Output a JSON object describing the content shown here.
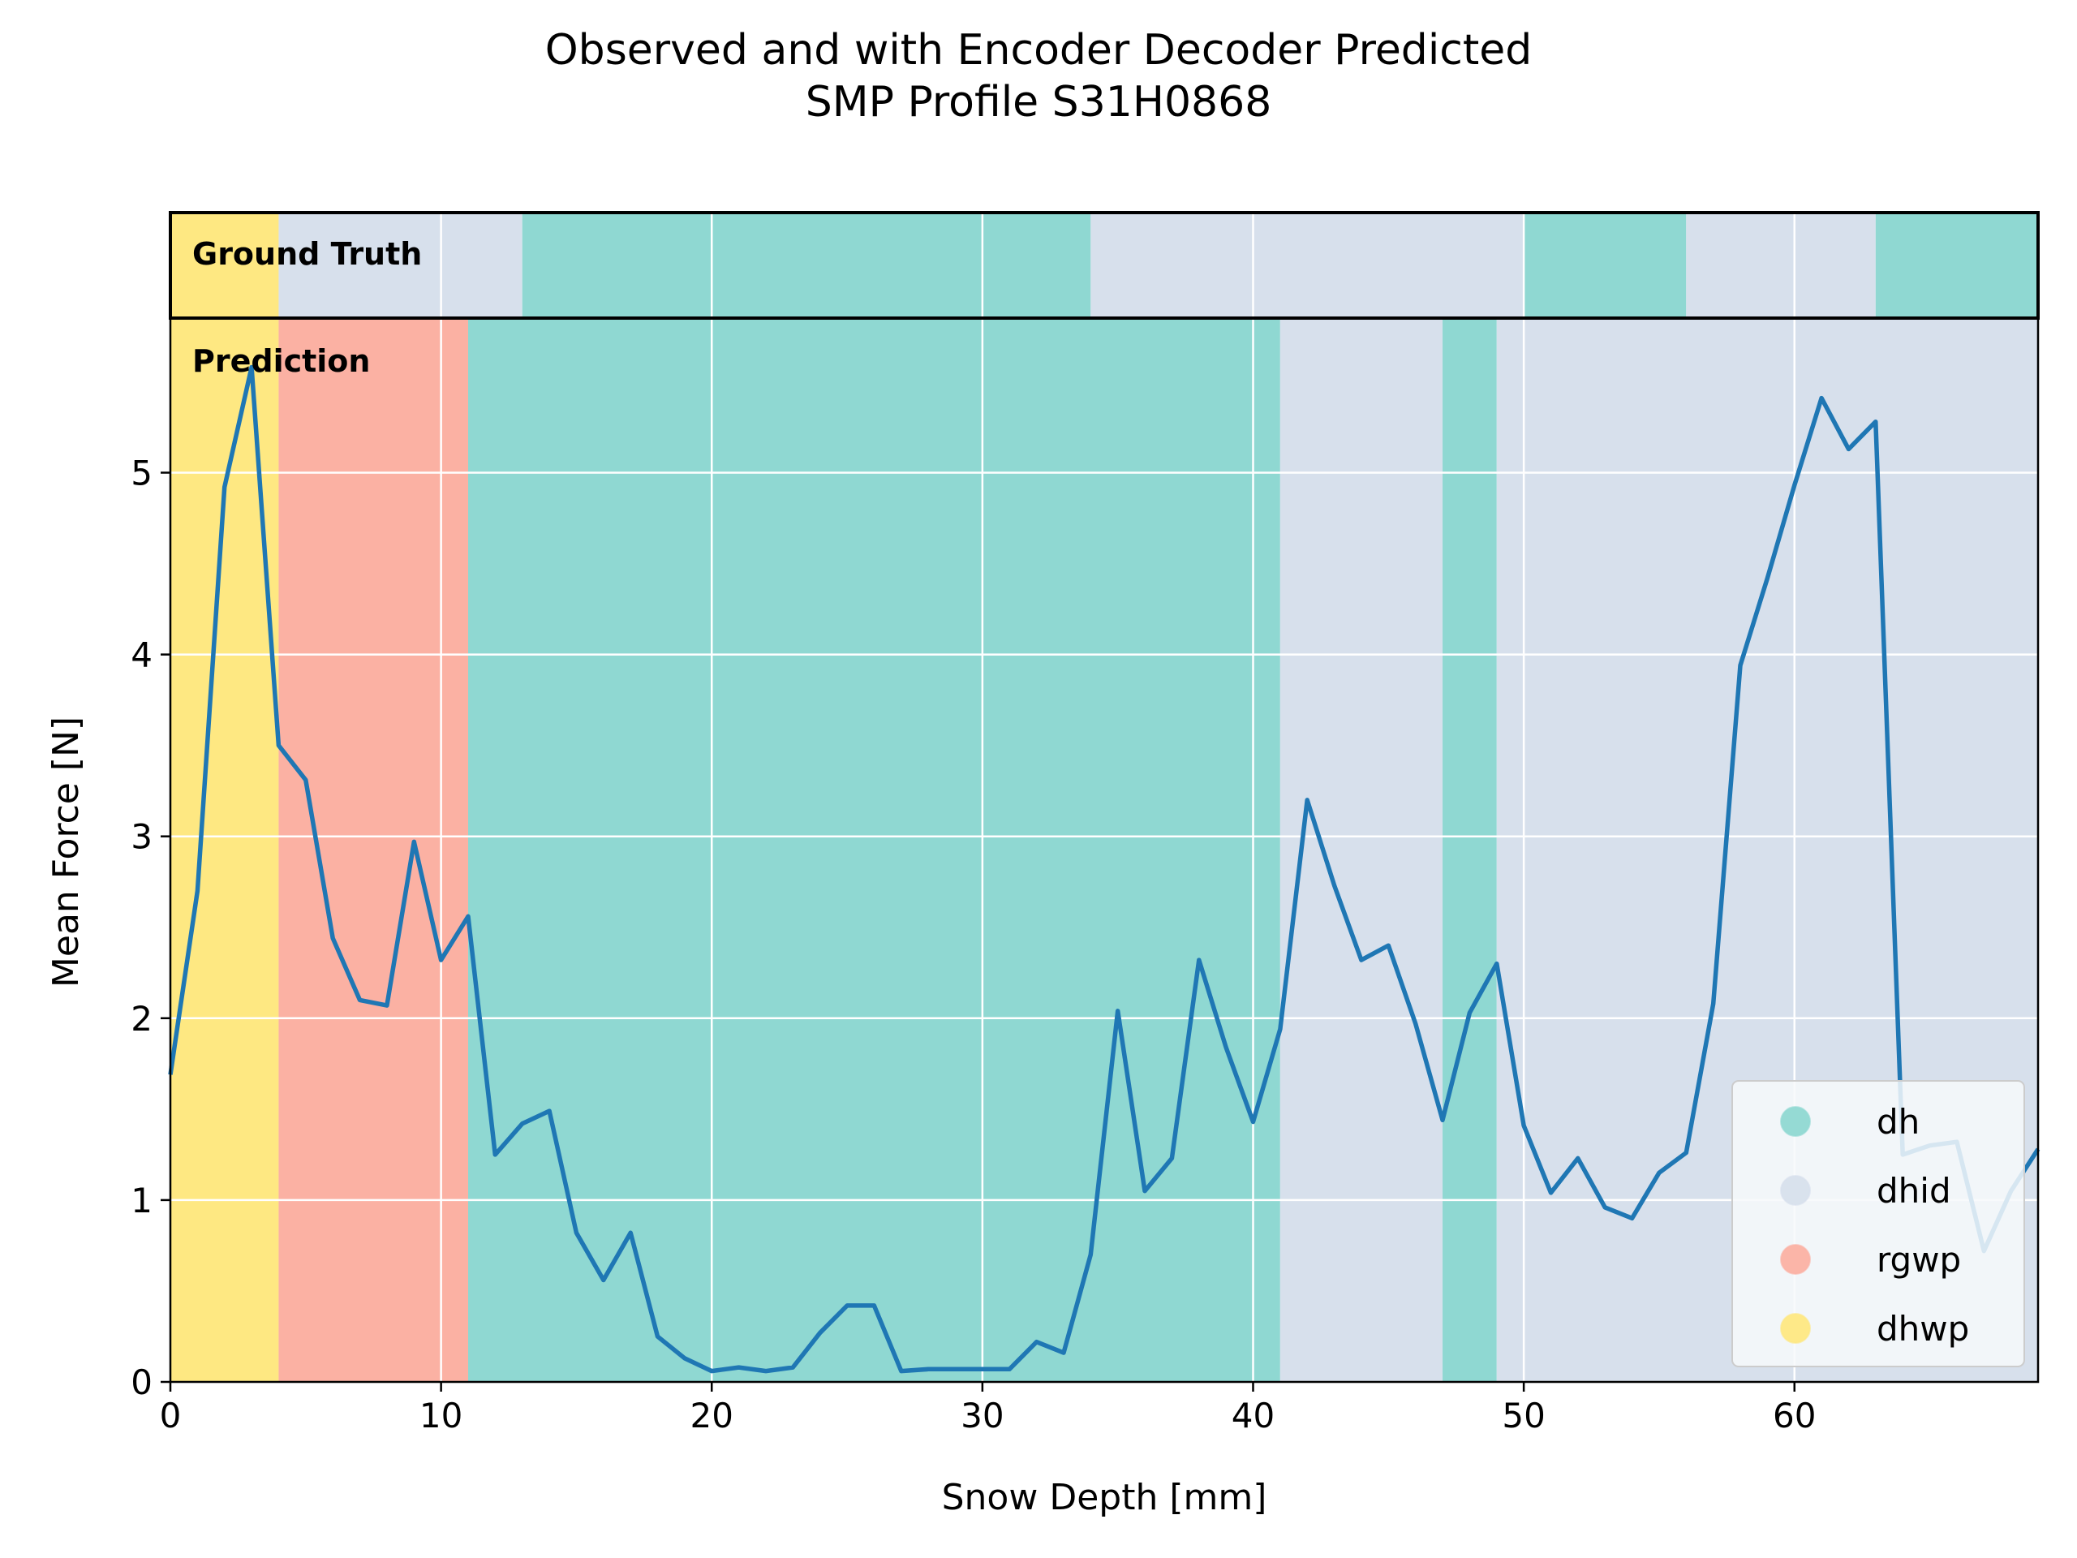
{
  "chart_data": {
    "type": "line",
    "title": "Observed and with Encoder Decoder Predicted",
    "subtitle": "SMP Profile S31H0868",
    "xlabel": "Snow Depth [mm]",
    "ylabel": "Mean Force [N]",
    "xlim": [
      0,
      69
    ],
    "ylim": [
      0,
      5.85
    ],
    "xticks": [
      0,
      10,
      20,
      30,
      40,
      50,
      60
    ],
    "yticks": [
      0,
      1,
      2,
      3,
      4,
      5
    ],
    "grid": true,
    "legend_position": "bottom-right",
    "panel_labels": {
      "ground_truth": "Ground Truth",
      "prediction": "Prediction"
    },
    "classes": [
      {
        "name": "dh",
        "color": "#8fd8d2"
      },
      {
        "name": "dhid",
        "color": "#d7e0ec"
      },
      {
        "name": "rgwp",
        "color": "#fbb1a3"
      },
      {
        "name": "dhwp",
        "color": "#fee882"
      }
    ],
    "ground_truth_segments": [
      {
        "start": 0,
        "end": 4,
        "class": "dhwp"
      },
      {
        "start": 4,
        "end": 13,
        "class": "dhid"
      },
      {
        "start": 13,
        "end": 34,
        "class": "dh"
      },
      {
        "start": 34,
        "end": 50,
        "class": "dhid"
      },
      {
        "start": 50,
        "end": 56,
        "class": "dh"
      },
      {
        "start": 56,
        "end": 63,
        "class": "dhid"
      },
      {
        "start": 63,
        "end": 69,
        "class": "dh"
      }
    ],
    "prediction_segments": [
      {
        "start": 0,
        "end": 4,
        "class": "dhwp"
      },
      {
        "start": 4,
        "end": 11,
        "class": "rgwp"
      },
      {
        "start": 11,
        "end": 41,
        "class": "dh"
      },
      {
        "start": 41,
        "end": 47,
        "class": "dhid"
      },
      {
        "start": 47,
        "end": 49,
        "class": "dh"
      },
      {
        "start": 49,
        "end": 69,
        "class": "dhid"
      }
    ],
    "series": [
      {
        "color": "#1f77b4",
        "x": [
          0,
          1,
          2,
          3,
          4,
          5,
          6,
          7,
          8,
          9,
          10,
          11,
          12,
          13,
          14,
          15,
          16,
          17,
          18,
          19,
          20,
          21,
          22,
          23,
          24,
          25,
          26,
          27,
          28,
          29,
          30,
          31,
          32,
          33,
          34,
          35,
          36,
          37,
          38,
          39,
          40,
          41,
          42,
          43,
          44,
          45,
          46,
          47,
          48,
          49,
          50,
          51,
          52,
          53,
          54,
          55,
          56,
          57,
          58,
          59,
          60,
          61,
          62,
          63,
          64,
          65,
          66,
          67,
          68,
          69
        ],
        "y": [
          1.69,
          2.7,
          4.92,
          5.58,
          3.5,
          3.31,
          2.44,
          2.1,
          2.07,
          2.97,
          2.32,
          2.56,
          1.25,
          1.42,
          1.49,
          0.82,
          0.56,
          0.82,
          0.25,
          0.13,
          0.06,
          0.08,
          0.06,
          0.08,
          0.27,
          0.42,
          0.42,
          0.06,
          0.07,
          0.07,
          0.07,
          0.07,
          0.22,
          0.16,
          0.7,
          2.04,
          1.05,
          1.23,
          2.32,
          1.84,
          1.43,
          1.94,
          3.2,
          2.73,
          2.32,
          2.4,
          1.97,
          1.44,
          2.03,
          2.3,
          1.41,
          1.04,
          1.23,
          0.96,
          0.9,
          1.15,
          1.26,
          2.08,
          3.94,
          4.42,
          4.93,
          5.41,
          5.13,
          5.28,
          1.25,
          1.3,
          1.32,
          0.72,
          1.05,
          1.28
        ]
      }
    ]
  }
}
